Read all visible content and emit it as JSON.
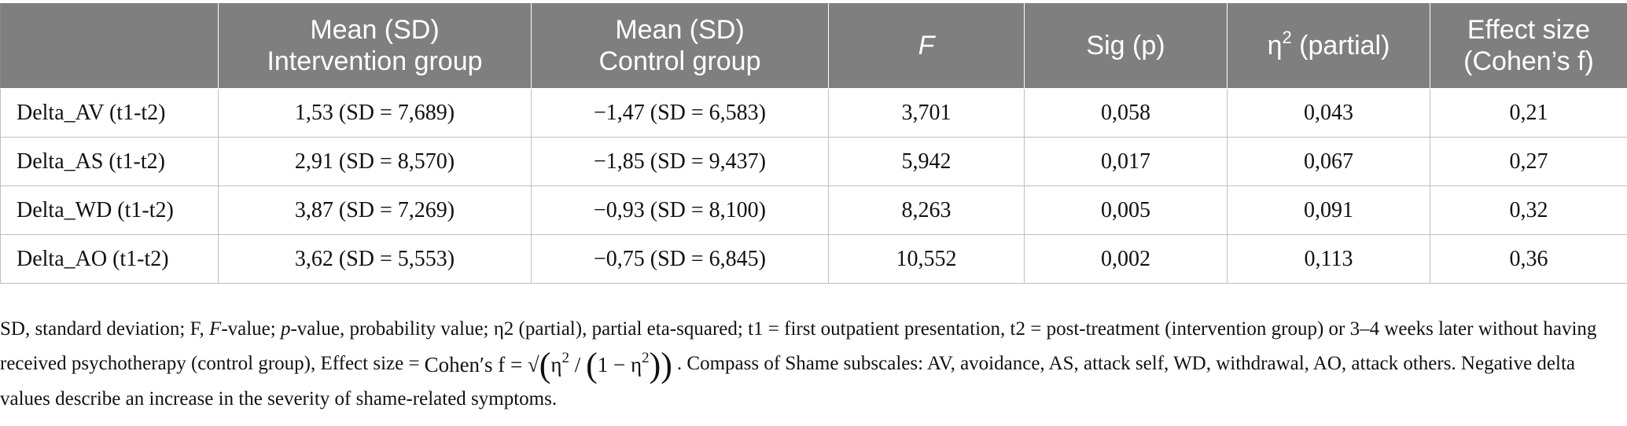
{
  "table": {
    "headers": [
      {
        "line1": "",
        "line2": ""
      },
      {
        "line1": "Mean (SD)",
        "line2": "Intervention group"
      },
      {
        "line1": "Mean (SD)",
        "line2": "Control group"
      },
      {
        "line1": "F",
        "line2": ""
      },
      {
        "line1": "Sig (p)",
        "line2": ""
      },
      {
        "line1": "η",
        "sup": "2",
        "rest": " (partial)"
      },
      {
        "line1": "Effect size",
        "line2": "(Cohen’s f)"
      }
    ],
    "rows": [
      {
        "label": "Delta_AV (t1-t2)",
        "intervention": "1,53 (SD = 7,689)",
        "control": "−1,47 (SD = 6,583)",
        "f": "3,701",
        "p": "0,058",
        "eta": "0,043",
        "effect": "0,21"
      },
      {
        "label": "Delta_AS (t1-t2)",
        "intervention": "2,91 (SD = 8,570)",
        "control": "−1,85 (SD = 9,437)",
        "f": "5,942",
        "p": "0,017",
        "eta": "0,067",
        "effect": "0,27"
      },
      {
        "label": "Delta_WD (t1-t2)",
        "intervention": "3,87 (SD = 7,269)",
        "control": "−0,93 (SD = 8,100)",
        "f": "8,263",
        "p": "0,005",
        "eta": "0,091",
        "effect": "0,32"
      },
      {
        "label": "Delta_AO (t1-t2)",
        "intervention": "3,62 (SD = 5,553)",
        "control": "−0,75 (SD = 6,845)",
        "f": "10,552",
        "p": "0,002",
        "eta": "0,113",
        "effect": "0,36"
      }
    ]
  },
  "footnote": {
    "part1": "SD, standard deviation; F, ",
    "f_italic": "F",
    "part2": "-value; ",
    "p_italic": "p",
    "part3": "-value, probability value; η2 (partial), partial eta-squared; t1 = first outpatient presentation, t2 = post-treatment (intervention group) or 3–4 weeks later without having received psychotherapy (control group), Effect size =",
    "formula_lhs": "Cohen′s f = √",
    "formula_eta": "η",
    "formula_exp": "2",
    "formula_div": " / ",
    "formula_one": "1 − η",
    "part4": ". Compass of Shame subscales: AV, avoidance, AS, attack self, WD, withdrawal, AO, attack others. Negative delta values describe an increase in the severity of shame-related symptoms."
  }
}
